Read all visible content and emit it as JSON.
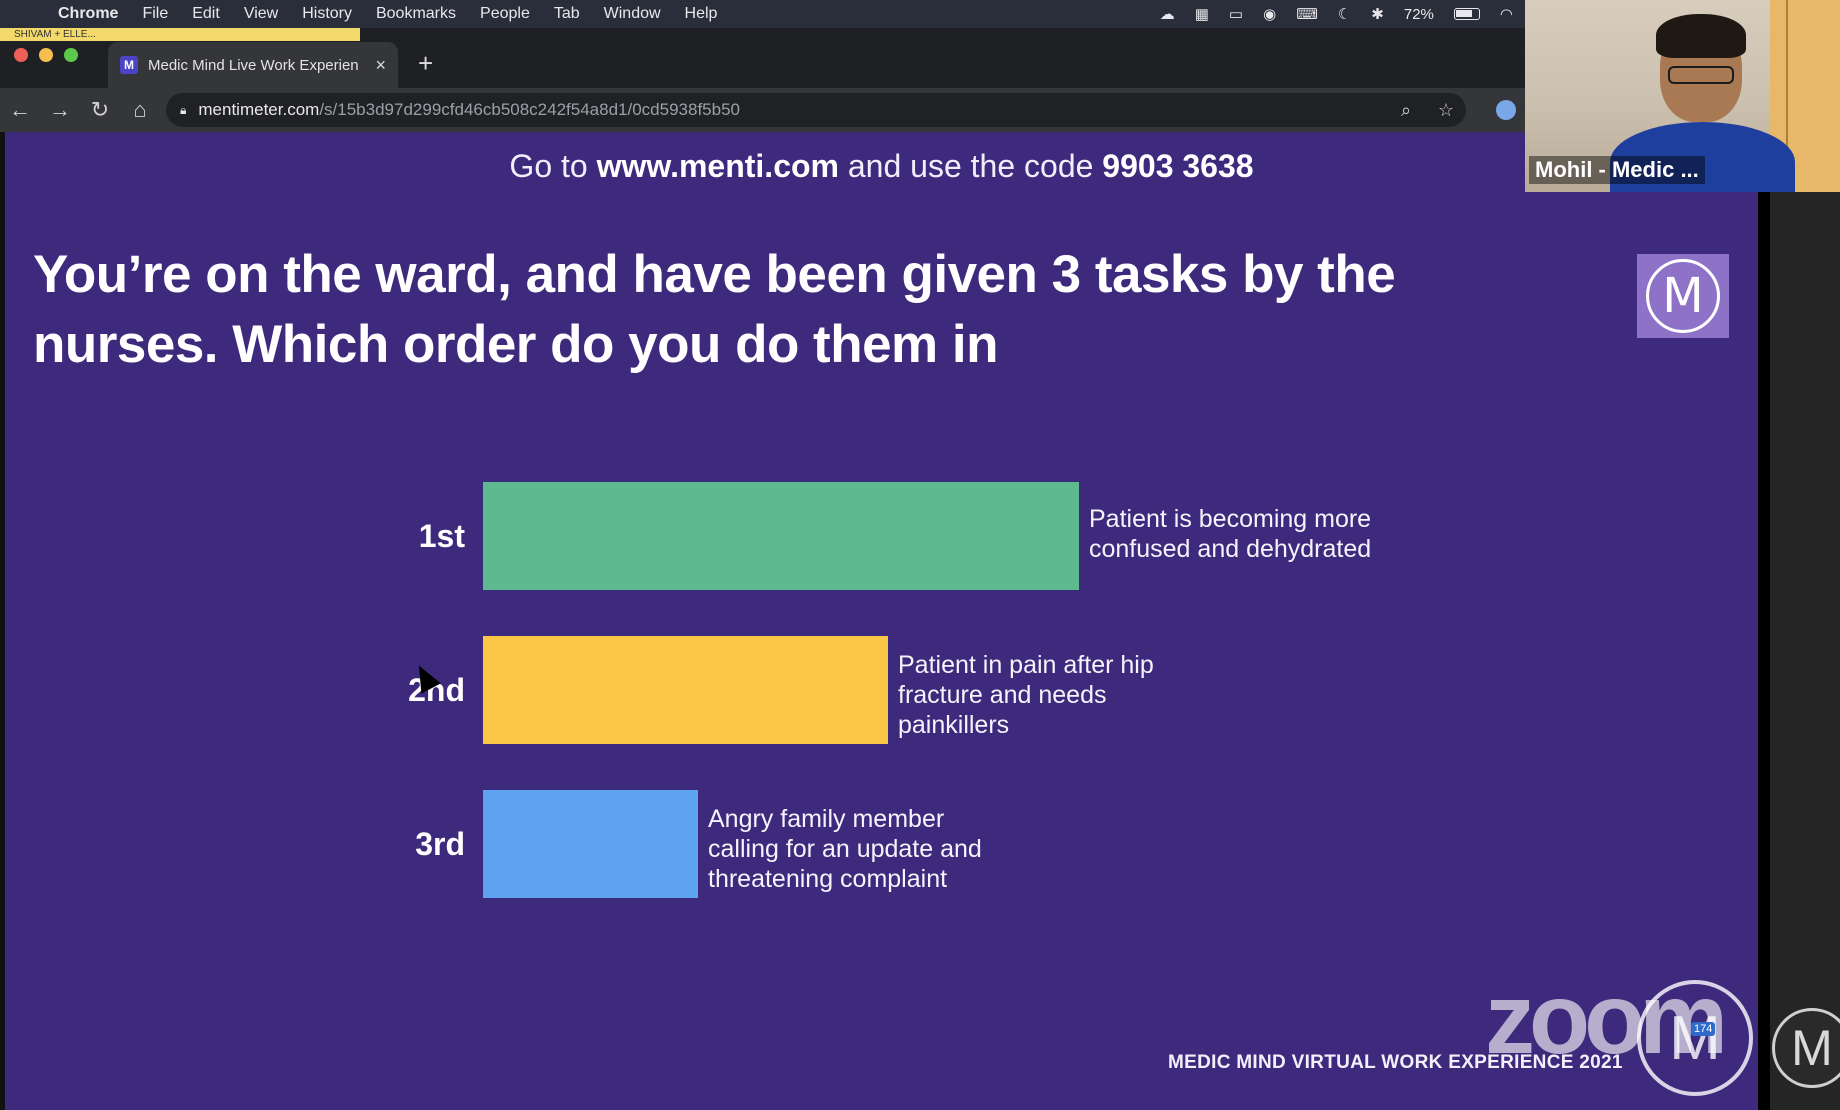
{
  "menubar": {
    "app_name": "Chrome",
    "items": [
      "File",
      "Edit",
      "View",
      "History",
      "Bookmarks",
      "People",
      "Tab",
      "Window",
      "Help"
    ],
    "battery": "72%"
  },
  "browser": {
    "sharing_label": "SHIVAM + ELLE...",
    "tab_title": "Medic Mind Live Work Experien",
    "tab_favicon": "M",
    "url_host": "mentimeter.com",
    "url_path": "/s/15b3d97d299cfd46cb508c242f54a8d1/0cd5938f5b50"
  },
  "slide": {
    "instruction_pre": "Go to ",
    "instruction_site": "www.menti.com",
    "instruction_mid": " and use the code ",
    "instruction_code": "9903 3638",
    "question": "You’re on the ward, and have been given 3 tasks by the nurses. Which order do you do them in",
    "logo_letter": "M",
    "footer": "MEDIC MIND VIRTUAL WORK EXPERIENCE 2021",
    "zoom_watermark": "zoom",
    "participant_count": "174",
    "bottom_logo_letter": "M"
  },
  "chart_data": {
    "type": "bar",
    "orientation": "horizontal",
    "categories": [
      "1st",
      "2nd",
      "3rd"
    ],
    "values": [
      100,
      68,
      36
    ],
    "colors": [
      "#5fb98e",
      "#fbc546",
      "#5ea3f0"
    ],
    "annotations": [
      "Patient is becoming more confused and dehydrated",
      "Patient in pain after hip fracture and needs painkillers",
      "Angry family member calling for an update and threatening complaint"
    ]
  },
  "webcam": {
    "participant_name": "Mohil - Medic ..."
  },
  "icons": {
    "apple": "apple-icon",
    "notification": "notification-icon",
    "bluetooth": "bluetooth-icon",
    "wifi": "wifi-icon",
    "zoom_search": "search-icon",
    "bookmark": "star-icon"
  }
}
